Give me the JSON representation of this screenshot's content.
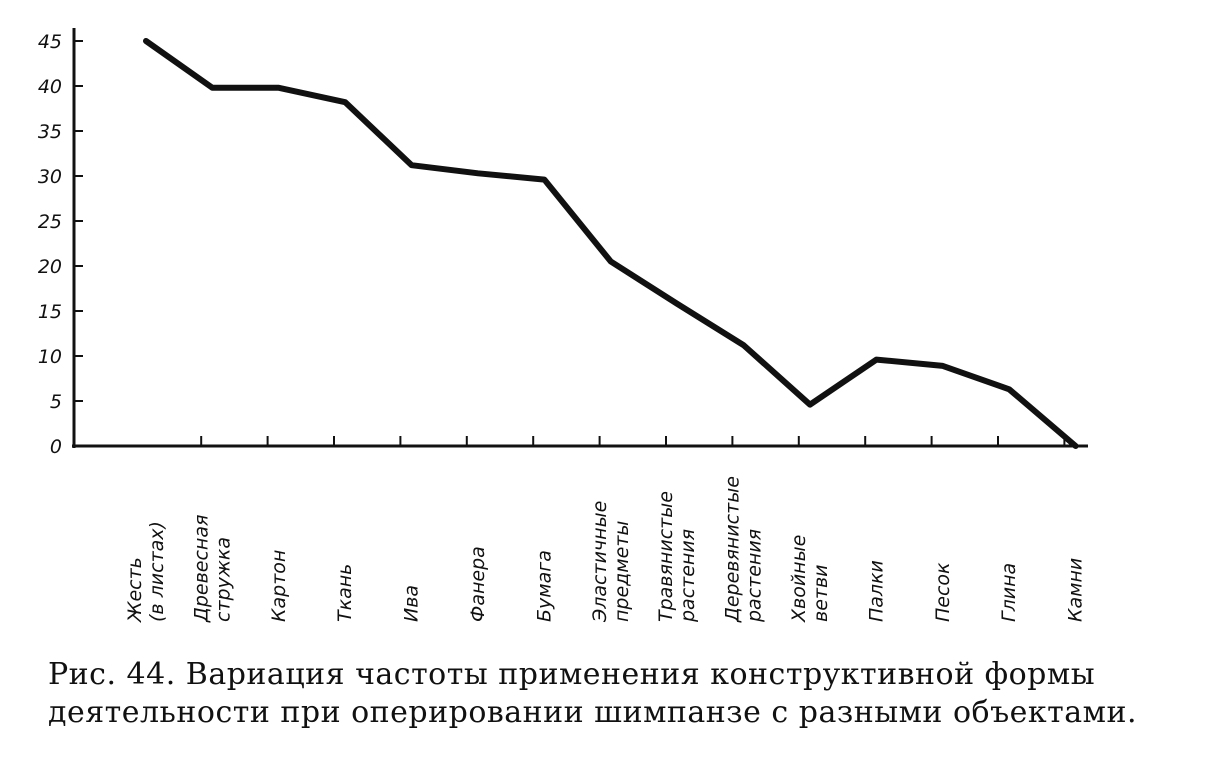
{
  "chart_data": {
    "type": "line",
    "y_ticks": [
      "0",
      "5",
      "10",
      "15",
      "20",
      "25",
      "30",
      "35",
      "40",
      "45"
    ],
    "ylim": [
      0,
      45
    ],
    "grid": false,
    "legend": "none",
    "categories": [
      [
        "Жесть",
        "(в листах)"
      ],
      [
        "Древесная",
        "стружка"
      ],
      [
        "Картон"
      ],
      [
        "Ткань"
      ],
      [
        "Ива"
      ],
      [
        "Фанера"
      ],
      [
        "Бумага"
      ],
      [
        "Эластичные",
        "предметы"
      ],
      [
        "Травянистые",
        "растения"
      ],
      [
        "Деревянистые",
        "растения"
      ],
      [
        "Хвойные",
        "ветви"
      ],
      [
        "Палки"
      ],
      [
        "Песок"
      ],
      [
        "Глина"
      ],
      [
        "Камни"
      ]
    ],
    "values": [
      45,
      39.8,
      39.8,
      38.2,
      31.2,
      30.3,
      29.6,
      20.5,
      15.8,
      11.2,
      4.6,
      9.6,
      8.9,
      6.3,
      0
    ],
    "line_color": "#111111"
  },
  "caption": {
    "line1": "Рис. 44. Вариация частоты применения конструктивной формы",
    "line2": "деятельности при оперировании шимпанзе с разными объектами."
  }
}
